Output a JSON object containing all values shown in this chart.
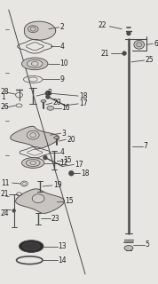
{
  "bg_color": "#e8e6e2",
  "line_color": "#4a4a4a",
  "text_color": "#222222",
  "fs": 5.5,
  "fig_w": 1.78,
  "fig_h": 3.2,
  "dpi": 100
}
